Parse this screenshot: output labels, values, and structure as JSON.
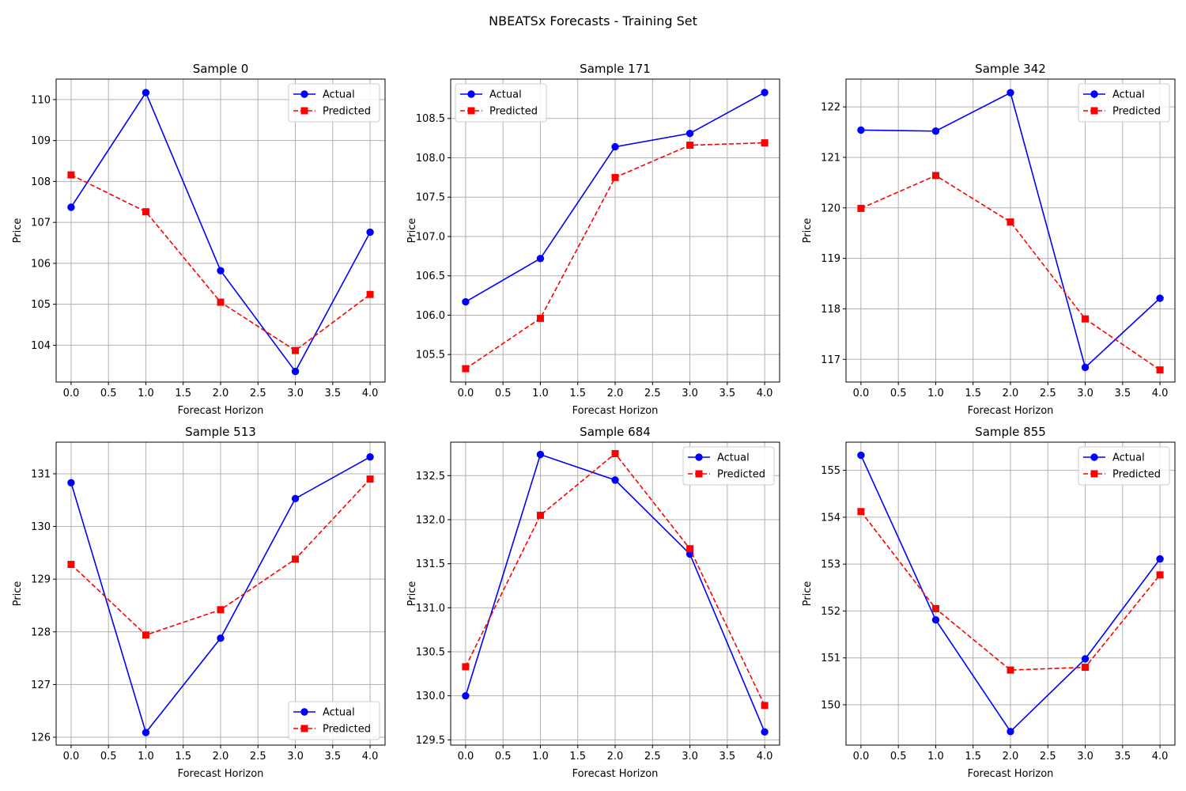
{
  "figure": {
    "suptitle": "NBEATSx Forecasts - Training Set"
  },
  "colors": {
    "actual": "#0000ff",
    "predicted": "#ff0000",
    "grid": "#b0b0b0",
    "frame": "#000000"
  },
  "chart_data": [
    {
      "type": "line",
      "title": "Sample 0",
      "xlabel": "Forecast Horizon",
      "ylabel": "Price",
      "x": [
        0,
        1,
        2,
        3,
        4
      ],
      "xticks": [
        0.0,
        0.5,
        1.0,
        1.5,
        2.0,
        2.5,
        3.0,
        3.5,
        4.0
      ],
      "xtick_labels": [
        "0.0",
        "0.5",
        "1.0",
        "1.5",
        "2.0",
        "2.5",
        "3.0",
        "3.5",
        "4.0"
      ],
      "yticks": [
        104,
        105,
        106,
        107,
        108,
        109,
        110
      ],
      "ytick_labels": [
        "104",
        "105",
        "106",
        "107",
        "108",
        "109",
        "110"
      ],
      "xlim": [
        -0.2,
        4.2
      ],
      "ylim": [
        103.1,
        110.5
      ],
      "grid": true,
      "legend": "upper right",
      "series": [
        {
          "name": "Actual",
          "values": [
            107.37,
            110.17,
            105.82,
            103.36,
            106.76
          ],
          "color": "#0000ff",
          "linestyle": "solid",
          "marker": "circle"
        },
        {
          "name": "Predicted",
          "values": [
            108.16,
            107.26,
            105.05,
            103.87,
            105.24
          ],
          "color": "#ff0000",
          "linestyle": "dashed",
          "marker": "square"
        }
      ]
    },
    {
      "type": "line",
      "title": "Sample 171",
      "xlabel": "Forecast Horizon",
      "ylabel": "Price",
      "x": [
        0,
        1,
        2,
        3,
        4
      ],
      "xticks": [
        0.0,
        0.5,
        1.0,
        1.5,
        2.0,
        2.5,
        3.0,
        3.5,
        4.0
      ],
      "xtick_labels": [
        "0.0",
        "0.5",
        "1.0",
        "1.5",
        "2.0",
        "2.5",
        "3.0",
        "3.5",
        "4.0"
      ],
      "yticks": [
        105.5,
        106.0,
        106.5,
        107.0,
        107.5,
        108.0,
        108.5
      ],
      "ytick_labels": [
        "105.5",
        "106.0",
        "106.5",
        "107.0",
        "107.5",
        "108.0",
        "108.5"
      ],
      "xlim": [
        -0.2,
        4.2
      ],
      "ylim": [
        105.15,
        109.0
      ],
      "grid": true,
      "legend": "upper left",
      "series": [
        {
          "name": "Actual",
          "values": [
            106.17,
            106.72,
            108.14,
            108.31,
            108.83
          ],
          "color": "#0000ff",
          "linestyle": "solid",
          "marker": "circle"
        },
        {
          "name": "Predicted",
          "values": [
            105.32,
            105.96,
            107.75,
            108.16,
            108.19
          ],
          "color": "#ff0000",
          "linestyle": "dashed",
          "marker": "square"
        }
      ]
    },
    {
      "type": "line",
      "title": "Sample 342",
      "xlabel": "Forecast Horizon",
      "ylabel": "Price",
      "x": [
        0,
        1,
        2,
        3,
        4
      ],
      "xticks": [
        0.0,
        0.5,
        1.0,
        1.5,
        2.0,
        2.5,
        3.0,
        3.5,
        4.0
      ],
      "xtick_labels": [
        "0.0",
        "0.5",
        "1.0",
        "1.5",
        "2.0",
        "2.5",
        "3.0",
        "3.5",
        "4.0"
      ],
      "yticks": [
        117,
        118,
        119,
        120,
        121,
        122
      ],
      "ytick_labels": [
        "117",
        "118",
        "119",
        "120",
        "121",
        "122"
      ],
      "xlim": [
        -0.2,
        4.2
      ],
      "ylim": [
        116.55,
        122.55
      ],
      "grid": true,
      "legend": "upper right",
      "series": [
        {
          "name": "Actual",
          "values": [
            121.54,
            121.52,
            122.28,
            116.84,
            118.21
          ],
          "color": "#0000ff",
          "linestyle": "solid",
          "marker": "circle"
        },
        {
          "name": "Predicted",
          "values": [
            119.99,
            120.64,
            119.72,
            117.8,
            116.79
          ],
          "color": "#ff0000",
          "linestyle": "dashed",
          "marker": "square"
        }
      ]
    },
    {
      "type": "line",
      "title": "Sample 513",
      "xlabel": "Forecast Horizon",
      "ylabel": "Price",
      "x": [
        0,
        1,
        2,
        3,
        4
      ],
      "xticks": [
        0.0,
        0.5,
        1.0,
        1.5,
        2.0,
        2.5,
        3.0,
        3.5,
        4.0
      ],
      "xtick_labels": [
        "0.0",
        "0.5",
        "1.0",
        "1.5",
        "2.0",
        "2.5",
        "3.0",
        "3.5",
        "4.0"
      ],
      "yticks": [
        126,
        127,
        128,
        129,
        130,
        131
      ],
      "ytick_labels": [
        "126",
        "127",
        "128",
        "129",
        "130",
        "131"
      ],
      "xlim": [
        -0.2,
        4.2
      ],
      "ylim": [
        125.85,
        131.6
      ],
      "grid": true,
      "legend": "lower right",
      "series": [
        {
          "name": "Actual",
          "values": [
            130.83,
            126.09,
            127.88,
            130.53,
            131.32
          ],
          "color": "#0000ff",
          "linestyle": "solid",
          "marker": "circle"
        },
        {
          "name": "Predicted",
          "values": [
            129.28,
            127.94,
            128.42,
            129.38,
            130.9
          ],
          "color": "#ff0000",
          "linestyle": "dashed",
          "marker": "square"
        }
      ]
    },
    {
      "type": "line",
      "title": "Sample 684",
      "xlabel": "Forecast Horizon",
      "ylabel": "Price",
      "x": [
        0,
        1,
        2,
        3,
        4
      ],
      "xticks": [
        0.0,
        0.5,
        1.0,
        1.5,
        2.0,
        2.5,
        3.0,
        3.5,
        4.0
      ],
      "xtick_labels": [
        "0.0",
        "0.5",
        "1.0",
        "1.5",
        "2.0",
        "2.5",
        "3.0",
        "3.5",
        "4.0"
      ],
      "yticks": [
        129.5,
        130.0,
        130.5,
        131.0,
        131.5,
        132.0,
        132.5
      ],
      "ytick_labels": [
        "129.5",
        "130.0",
        "130.5",
        "131.0",
        "131.5",
        "132.0",
        "132.5"
      ],
      "xlim": [
        -0.2,
        4.2
      ],
      "ylim": [
        129.44,
        132.88
      ],
      "grid": true,
      "legend": "upper right",
      "series": [
        {
          "name": "Actual",
          "values": [
            130.0,
            132.74,
            132.45,
            131.61,
            129.59
          ],
          "color": "#0000ff",
          "linestyle": "solid",
          "marker": "circle"
        },
        {
          "name": "Predicted",
          "values": [
            130.33,
            132.05,
            132.75,
            131.67,
            129.89
          ],
          "color": "#ff0000",
          "linestyle": "dashed",
          "marker": "square"
        }
      ]
    },
    {
      "type": "line",
      "title": "Sample 855",
      "xlabel": "Forecast Horizon",
      "ylabel": "Price",
      "x": [
        0,
        1,
        2,
        3,
        4
      ],
      "xticks": [
        0.0,
        0.5,
        1.0,
        1.5,
        2.0,
        2.5,
        3.0,
        3.5,
        4.0
      ],
      "xtick_labels": [
        "0.0",
        "0.5",
        "1.0",
        "1.5",
        "2.0",
        "2.5",
        "3.0",
        "3.5",
        "4.0"
      ],
      "yticks": [
        150,
        151,
        152,
        153,
        154,
        155
      ],
      "ytick_labels": [
        "150",
        "151",
        "152",
        "153",
        "154",
        "155"
      ],
      "xlim": [
        -0.2,
        4.2
      ],
      "ylim": [
        149.14,
        155.6
      ],
      "grid": true,
      "legend": "upper right",
      "series": [
        {
          "name": "Actual",
          "values": [
            155.32,
            151.81,
            149.43,
            150.98,
            153.11
          ],
          "color": "#0000ff",
          "linestyle": "solid",
          "marker": "circle"
        },
        {
          "name": "Predicted",
          "values": [
            154.12,
            152.05,
            150.74,
            150.8,
            152.77
          ],
          "color": "#ff0000",
          "linestyle": "dashed",
          "marker": "square"
        }
      ]
    }
  ]
}
